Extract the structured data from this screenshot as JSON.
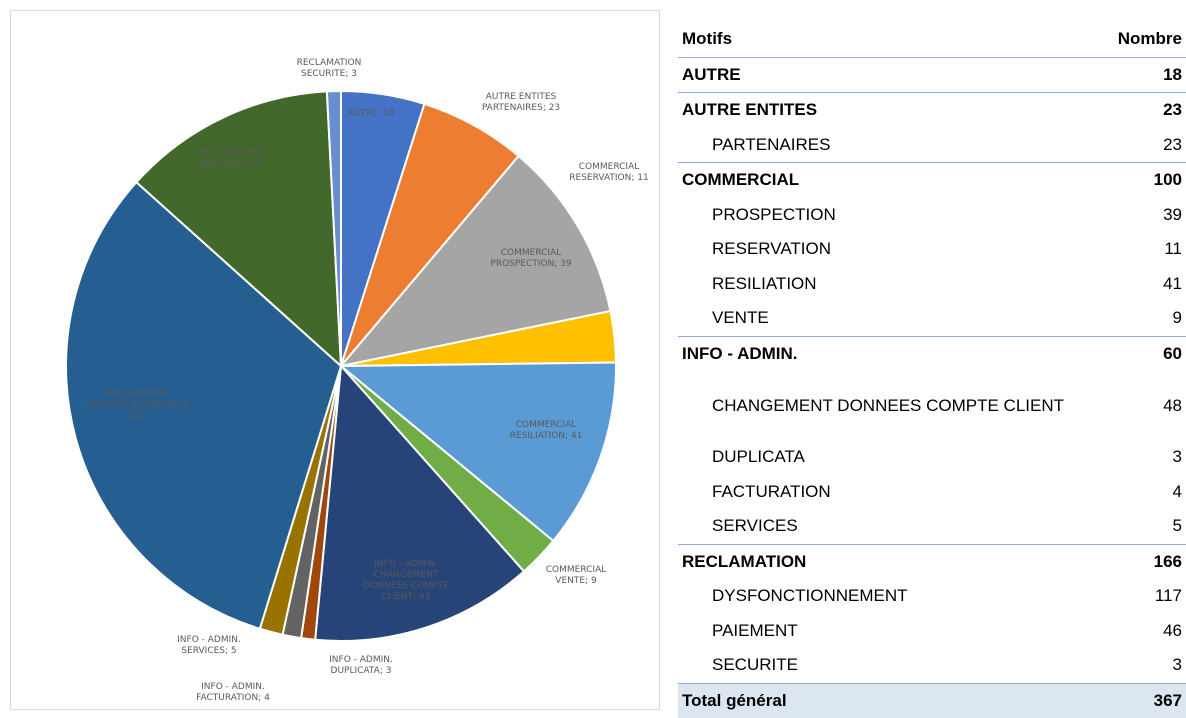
{
  "chart_data": {
    "type": "pie",
    "values": [
      18,
      23,
      39,
      11,
      41,
      9,
      48,
      3,
      4,
      5,
      117,
      46,
      3
    ],
    "value_labels": [
      "AUTRE; 18",
      "AUTRE ENTITES PARTENAIRES; 23",
      "COMMERCIAL PROSPECTION; 39",
      "COMMERCIAL RESERVATION; 11",
      "COMMERCIAL RESILIATION; 41",
      "COMMERCIAL VENTE; 9",
      "INFO - ADMIN. CHANGEMENT DONNEES COMPTE CLIENT; 48",
      "INFO - ADMIN. DUPLICATA; 3",
      "INFO - ADMIN. FACTURATION; 4",
      "INFO - ADMIN. SERVICES; 5",
      "RECLAMATION DYSFONCTIONNEMENT; 117",
      "RECLAMATION PAIEMENT; 46",
      "RECLAMATION SECURITE; 3"
    ],
    "colors": [
      "#4472c4",
      "#ed7d31",
      "#a5a5a5",
      "#ffc000",
      "#5b9bd5",
      "#70ad47",
      "#264478",
      "#9e480e",
      "#636363",
      "#997300",
      "#255e91",
      "#43682b",
      "#698ed0"
    ]
  },
  "table": {
    "header": [
      "Motifs",
      "Nombre"
    ],
    "groups": [
      {
        "label": "AUTRE",
        "value": 18,
        "items": []
      },
      {
        "label": "AUTRE ENTITES",
        "value": 23,
        "items": [
          [
            "PARTENAIRES",
            23
          ]
        ]
      },
      {
        "label": "COMMERCIAL",
        "value": 100,
        "items": [
          [
            "PROSPECTION",
            39
          ],
          [
            "RESERVATION",
            11
          ],
          [
            "RESILIATION",
            41
          ],
          [
            "VENTE",
            9
          ]
        ]
      },
      {
        "label": "INFO - ADMIN.",
        "value": 60,
        "items": [
          [
            "CHANGEMENT DONNEES COMPTE CLIENT",
            48
          ],
          [
            "DUPLICATA",
            3
          ],
          [
            "FACTURATION",
            4
          ],
          [
            "SERVICES",
            5
          ]
        ]
      },
      {
        "label": "RECLAMATION",
        "value": 166,
        "items": [
          [
            "DYSFONCTIONNEMENT",
            117
          ],
          [
            "PAIEMENT",
            46
          ],
          [
            "SECURITE",
            3
          ]
        ]
      }
    ],
    "total": [
      "Total général",
      367
    ]
  }
}
